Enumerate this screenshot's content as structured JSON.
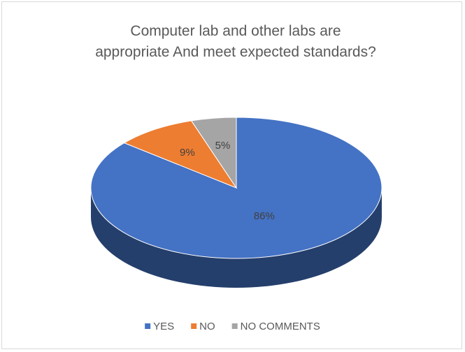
{
  "chart_data": {
    "type": "pie",
    "title": "Computer lab and other labs are appropriate And meet expected standards?",
    "categories": [
      "YES",
      "NO",
      "NO COMMENTS"
    ],
    "values": [
      86,
      9,
      5
    ],
    "value_labels": [
      "86%",
      "9%",
      "5%"
    ],
    "colors": [
      "#4472c4",
      "#ed7d31",
      "#a5a5a5"
    ],
    "legend": "bottom"
  }
}
